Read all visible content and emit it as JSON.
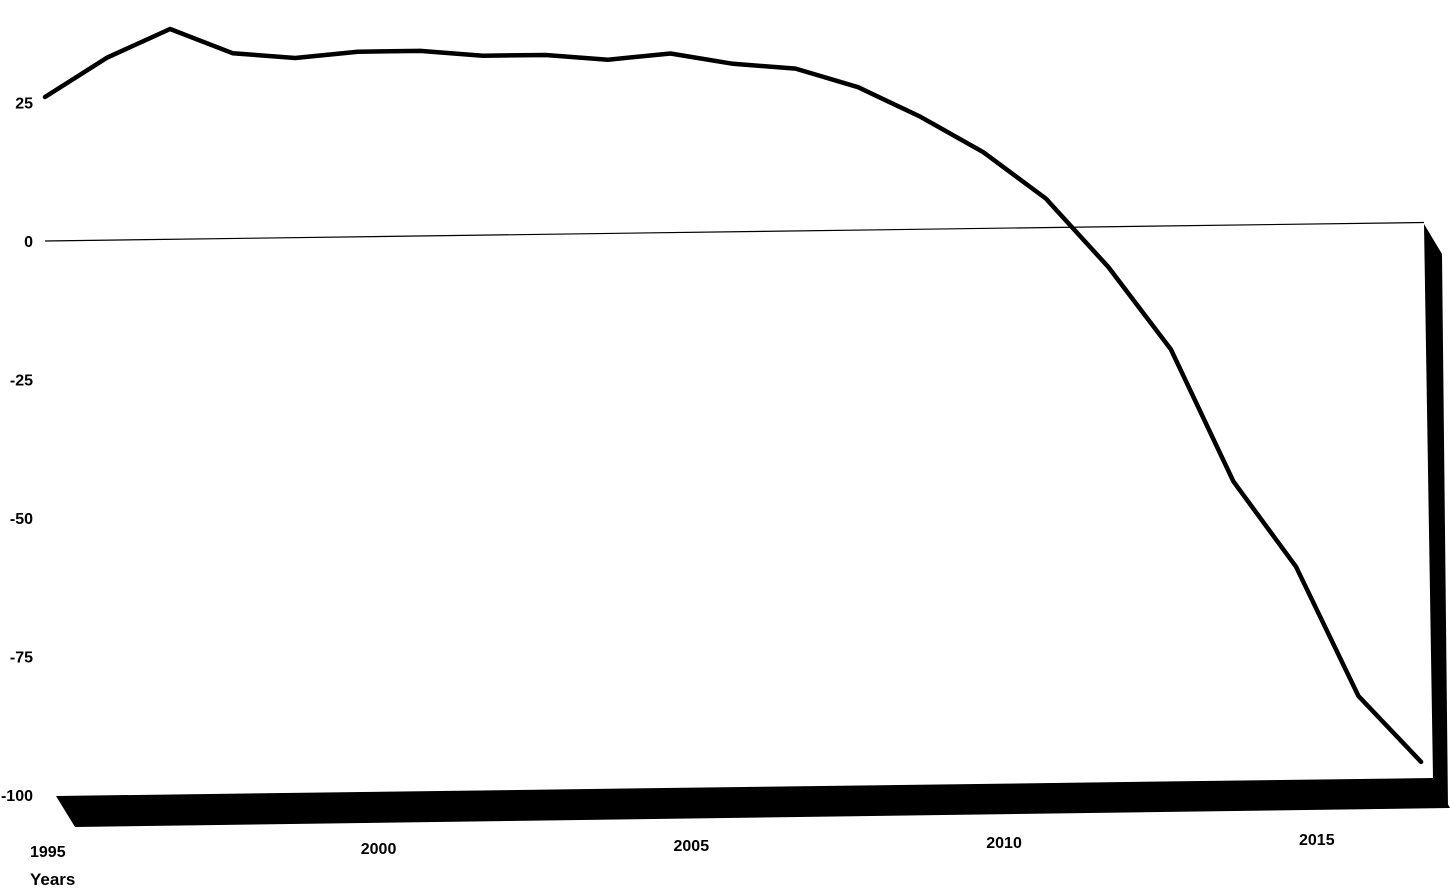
{
  "chart_data": {
    "type": "line",
    "title": "",
    "xlabel": "Years",
    "ylabel": "",
    "xlim": [
      1995,
      2017
    ],
    "ylim": [
      -100,
      25
    ],
    "x_ticks": [
      1995,
      2000,
      2005,
      2010,
      2015
    ],
    "y_ticks": [
      25,
      0,
      -25,
      -50,
      -75,
      -100
    ],
    "x_tick_labels": [
      "1995",
      "2000",
      "2005",
      "2010",
      "2015"
    ],
    "y_tick_labels": [
      "25",
      "0",
      "-25",
      "-50",
      "-75",
      "-100"
    ],
    "grid": false,
    "reference_line": 0,
    "style": "3d-perspective",
    "series": [
      {
        "color": "#000000",
        "x": [
          1995,
          1996,
          1997,
          1998,
          1999,
          2000,
          2001,
          2002,
          2003,
          2004,
          2005,
          2006,
          2007,
          2008,
          2009,
          2010,
          2011,
          2012,
          2013,
          2014,
          2015,
          2016,
          2017
        ],
        "y": [
          26,
          33,
          38,
          33.5,
          32.5,
          33.5,
          33.5,
          32.5,
          32.5,
          31.5,
          32.5,
          30.5,
          29.5,
          26,
          20.5,
          14,
          5.5,
          -7,
          -22,
          -46,
          -61.5,
          -85,
          -97
        ]
      }
    ]
  }
}
